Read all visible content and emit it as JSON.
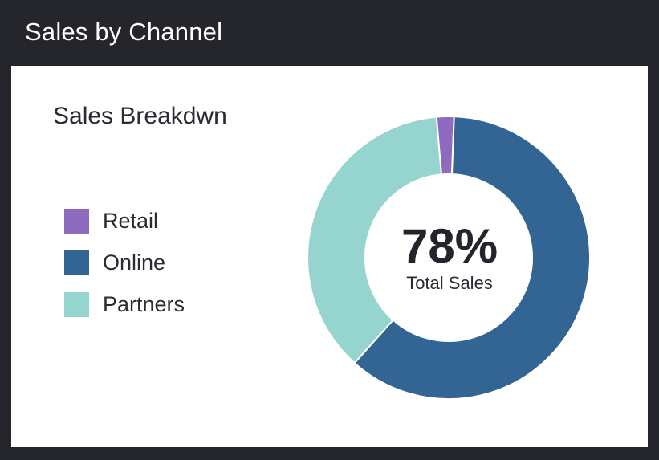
{
  "header": {
    "title": "Sales by Channel"
  },
  "card": {
    "title": "Sales Breakdwn",
    "center_value": "78%",
    "center_label": "Total Sales"
  },
  "colors": {
    "retail": "#8e6bbf",
    "online": "#336594",
    "partners": "#96d5cf",
    "header_bg": "#25262c",
    "card_bg": "#ffffff"
  },
  "chart_data": {
    "type": "pie",
    "style": "donut",
    "title": "Sales Breakdwn",
    "categories": [
      "Retail",
      "Online",
      "Partners"
    ],
    "values": [
      2,
      61,
      37
    ],
    "colors": [
      "#8e6bbf",
      "#336594",
      "#96d5cf"
    ],
    "start_angle_deg": -5,
    "legend_position": "left",
    "center_text": "78%",
    "center_subtext": "Total Sales"
  }
}
